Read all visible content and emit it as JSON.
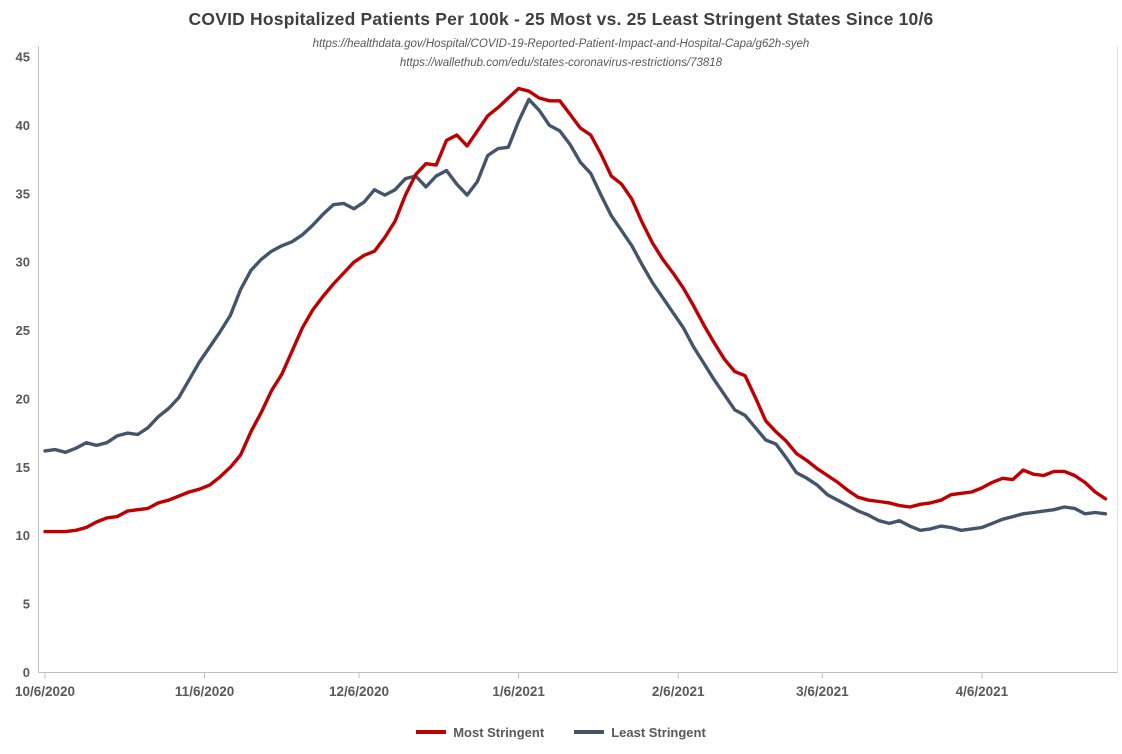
{
  "title": "COVID Hospitalized Patients Per 100k - 25 Most vs. 25 Least Stringent States Since 10/6",
  "subtitle_line1": "https://healthdata.gov/Hospital/COVID-19-Reported-Patient-Impact-and-Hospital-Capa/g62h-syeh",
  "subtitle_line2": "https://wallethub.com/edu/states-coronavirus-restrictions/73818",
  "colors": {
    "most_stringent": "#c00000",
    "least_stringent": "#44546a",
    "axis_line": "#bfbfbf",
    "tick_text": "#595959",
    "title_text": "#3f3f3f"
  },
  "legend": {
    "most_label": "Most Stringent",
    "least_label": "Least Stringent"
  },
  "chart_data": {
    "type": "line",
    "title": "COVID Hospitalized Patients Per 100k - 25 Most vs. 25 Least Stringent States Since 10/6",
    "xlabel": "",
    "ylabel": "",
    "ylim": [
      0,
      45
    ],
    "y_ticks": [
      0,
      5,
      10,
      15,
      20,
      25,
      30,
      35,
      40,
      45
    ],
    "grid": false,
    "legend_position": "bottom-center",
    "x_axis_unit": "days since 10/6/2020",
    "x_ticks": [
      {
        "day": 0,
        "label": "10/6/2020"
      },
      {
        "day": 31,
        "label": "11/6/2020"
      },
      {
        "day": 61,
        "label": "12/6/2020"
      },
      {
        "day": 92,
        "label": "1/6/2021"
      },
      {
        "day": 123,
        "label": "2/6/2021"
      },
      {
        "day": 151,
        "label": "3/6/2021"
      },
      {
        "day": 182,
        "label": "4/6/2021"
      }
    ],
    "x_days": [
      0,
      2,
      4,
      6,
      8,
      10,
      12,
      14,
      16,
      18,
      20,
      22,
      24,
      26,
      28,
      30,
      32,
      34,
      36,
      38,
      40,
      42,
      44,
      46,
      48,
      50,
      52,
      54,
      56,
      58,
      60,
      62,
      64,
      66,
      68,
      70,
      72,
      74,
      76,
      78,
      80,
      82,
      84,
      86,
      88,
      90,
      92,
      94,
      96,
      98,
      100,
      102,
      104,
      106,
      108,
      110,
      112,
      114,
      116,
      118,
      120,
      122,
      124,
      126,
      128,
      130,
      132,
      134,
      136,
      138,
      140,
      142,
      144,
      146,
      148,
      150,
      152,
      154,
      156,
      158,
      160,
      162,
      164,
      166,
      168,
      170,
      172,
      174,
      176,
      178,
      180,
      182,
      184,
      186,
      188,
      190,
      192,
      194,
      196,
      198,
      200,
      202,
      204,
      206
    ],
    "series": [
      {
        "name": "Most Stringent",
        "color": "#c00000",
        "values": [
          10.3,
          10.3,
          10.3,
          10.4,
          10.6,
          11.0,
          11.3,
          11.4,
          11.8,
          11.9,
          12.0,
          12.4,
          12.6,
          12.9,
          13.2,
          13.4,
          13.7,
          14.3,
          15.0,
          15.9,
          17.6,
          19.0,
          20.6,
          21.8,
          23.5,
          25.2,
          26.5,
          27.5,
          28.4,
          29.2,
          30.0,
          30.5,
          30.8,
          31.8,
          33.0,
          34.9,
          36.4,
          37.2,
          37.1,
          38.9,
          39.3,
          38.5,
          39.6,
          40.7,
          41.3,
          42.0,
          42.7,
          42.5,
          42.0,
          41.8,
          41.8,
          40.8,
          39.8,
          39.3,
          37.9,
          36.3,
          35.7,
          34.6,
          32.9,
          31.4,
          30.2,
          29.2,
          28.1,
          26.8,
          25.4,
          24.1,
          22.9,
          22.0,
          21.7,
          20.1,
          18.4,
          17.6,
          16.9,
          16.0,
          15.5,
          14.9,
          14.4,
          13.9,
          13.3,
          12.8,
          12.6,
          12.5,
          12.4,
          12.2,
          12.1,
          12.3,
          12.4,
          12.6,
          13.0,
          13.1,
          13.2,
          13.5,
          13.9,
          14.2,
          14.1,
          14.8,
          14.5,
          14.4,
          14.7,
          14.7,
          14.4,
          13.9,
          13.2,
          12.7
        ]
      },
      {
        "name": "Least Stringent",
        "color": "#44546a",
        "values": [
          16.2,
          16.3,
          16.1,
          16.4,
          16.8,
          16.6,
          16.8,
          17.3,
          17.5,
          17.4,
          17.9,
          18.7,
          19.3,
          20.1,
          21.4,
          22.7,
          23.8,
          24.9,
          26.1,
          28.0,
          29.4,
          30.2,
          30.8,
          31.2,
          31.5,
          32.0,
          32.7,
          33.5,
          34.2,
          34.3,
          33.9,
          34.4,
          35.3,
          34.9,
          35.3,
          36.1,
          36.3,
          35.5,
          36.3,
          36.7,
          35.7,
          34.9,
          35.9,
          37.8,
          38.3,
          38.4,
          40.3,
          41.9,
          41.1,
          40.0,
          39.6,
          38.6,
          37.3,
          36.5,
          34.9,
          33.4,
          32.3,
          31.2,
          29.8,
          28.5,
          27.4,
          26.3,
          25.2,
          23.8,
          22.6,
          21.4,
          20.3,
          19.2,
          18.8,
          17.9,
          17.0,
          16.7,
          15.7,
          14.6,
          14.2,
          13.7,
          13.0,
          12.6,
          12.2,
          11.8,
          11.5,
          11.1,
          10.9,
          11.1,
          10.7,
          10.4,
          10.5,
          10.7,
          10.6,
          10.4,
          10.5,
          10.6,
          10.9,
          11.2,
          11.4,
          11.6,
          11.7,
          11.8,
          11.9,
          12.1,
          12.0,
          11.6,
          11.7,
          11.6
        ]
      }
    ]
  }
}
